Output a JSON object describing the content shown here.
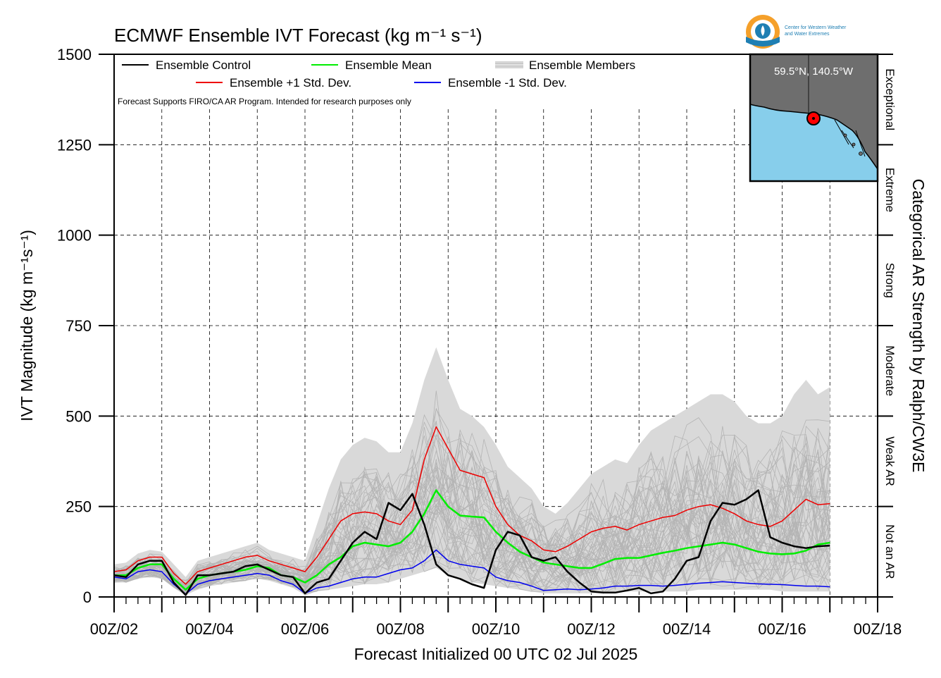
{
  "chart_data": {
    "type": "line",
    "title": "ECMWF Ensemble IVT Forecast (kg m⁻¹ s⁻¹)",
    "xlabel": "Forecast Initialized 00 UTC 02 Jul 2025",
    "ylabel": "IVT Magnitude (kg m⁻¹s⁻¹)",
    "right_label": "Categorical AR Strength by Ralph/CW3E",
    "note": "Forecast Supports FIRO/CA AR Program. Intended for research purposes only",
    "location": "59.5°N, 140.5°W",
    "logo_text": [
      "Center for Western Weather",
      "and Water Extremes"
    ],
    "ylim": [
      0,
      1500
    ],
    "xlim_hours": [
      0,
      384
    ],
    "y_ticks": [
      0,
      250,
      500,
      750,
      1000,
      1250,
      1500
    ],
    "x_ticks": [
      {
        "hour": 0,
        "label": "00Z/02"
      },
      {
        "hour": 48,
        "label": "00Z/04"
      },
      {
        "hour": 96,
        "label": "00Z/06"
      },
      {
        "hour": 144,
        "label": "00Z/08"
      },
      {
        "hour": 192,
        "label": "00Z/10"
      },
      {
        "hour": 240,
        "label": "00Z/12"
      },
      {
        "hour": 288,
        "label": "00Z/14"
      },
      {
        "hour": 336,
        "label": "00Z/16"
      },
      {
        "hour": 384,
        "label": "00Z/18"
      }
    ],
    "categories": [
      {
        "label": "Not an AR",
        "from": 0,
        "to": 250
      },
      {
        "label": "Weak AR",
        "from": 250,
        "to": 500
      },
      {
        "label": "Moderate",
        "from": 500,
        "to": 750
      },
      {
        "label": "Strong",
        "from": 750,
        "to": 1000
      },
      {
        "label": "Extreme",
        "from": 1000,
        "to": 1250
      },
      {
        "label": "Exceptional",
        "from": 1250,
        "to": 1500
      }
    ],
    "legend": [
      {
        "name": "Ensemble Control",
        "color": "#000000"
      },
      {
        "name": "Ensemble Mean",
        "color": "#00ee00"
      },
      {
        "name": "Ensemble Members",
        "color": "#b4b4b4"
      },
      {
        "name": "Ensemble +1 Std. Dev.",
        "color": "#ee0000"
      },
      {
        "name": "Ensemble -1 Std. Dev.",
        "color": "#0000ee"
      }
    ],
    "series": [
      {
        "name": "Ensemble Control",
        "color": "#000000",
        "x": [
          0,
          6,
          12,
          18,
          24,
          30,
          36,
          42,
          48,
          54,
          60,
          66,
          72,
          78,
          84,
          90,
          96,
          102,
          108,
          114,
          120,
          126,
          132,
          138,
          144,
          150,
          156,
          162,
          168,
          174,
          180,
          186,
          192,
          198,
          204,
          210,
          216,
          222,
          228,
          234,
          240,
          246,
          252,
          258,
          264,
          270,
          276,
          282,
          288,
          294,
          300,
          306,
          312,
          318,
          324,
          330,
          336,
          342,
          348,
          354,
          360
        ],
        "y": [
          60,
          55,
          90,
          100,
          100,
          40,
          5,
          60,
          60,
          65,
          70,
          85,
          90,
          75,
          60,
          55,
          10,
          40,
          50,
          100,
          150,
          180,
          160,
          260,
          240,
          285,
          200,
          90,
          60,
          50,
          35,
          25,
          130,
          180,
          170,
          110,
          100,
          110,
          70,
          40,
          15,
          12,
          12,
          18,
          25,
          10,
          15,
          50,
          100,
          110,
          210,
          260,
          255,
          270,
          295,
          165,
          150,
          140,
          135,
          140,
          142
        ]
      },
      {
        "name": "Ensemble Mean",
        "color": "#00ee00",
        "x": [
          0,
          6,
          12,
          18,
          24,
          30,
          36,
          42,
          48,
          54,
          60,
          66,
          72,
          78,
          84,
          90,
          96,
          102,
          108,
          114,
          120,
          126,
          132,
          138,
          144,
          150,
          156,
          162,
          168,
          174,
          180,
          186,
          192,
          198,
          204,
          210,
          216,
          222,
          228,
          234,
          240,
          246,
          252,
          258,
          264,
          270,
          276,
          282,
          288,
          294,
          300,
          306,
          312,
          318,
          324,
          330,
          336,
          342,
          348,
          354,
          360
        ],
        "y": [
          60,
          60,
          80,
          90,
          90,
          50,
          20,
          50,
          60,
          65,
          70,
          75,
          85,
          80,
          60,
          55,
          40,
          60,
          90,
          110,
          140,
          150,
          145,
          140,
          150,
          180,
          230,
          295,
          250,
          225,
          222,
          220,
          180,
          150,
          125,
          110,
          95,
          90,
          85,
          80,
          80,
          92,
          105,
          108,
          108,
          115,
          122,
          128,
          135,
          140,
          145,
          150,
          145,
          135,
          125,
          120,
          118,
          120,
          128,
          145,
          150
        ]
      },
      {
        "name": "Ensemble +1 Std. Dev.",
        "color": "#ee0000",
        "x": [
          0,
          6,
          12,
          18,
          24,
          30,
          36,
          42,
          48,
          54,
          60,
          66,
          72,
          78,
          84,
          90,
          96,
          102,
          108,
          114,
          120,
          126,
          132,
          138,
          144,
          150,
          156,
          162,
          168,
          174,
          180,
          186,
          192,
          198,
          204,
          210,
          216,
          222,
          228,
          234,
          240,
          246,
          252,
          258,
          264,
          270,
          276,
          282,
          288,
          294,
          300,
          306,
          312,
          318,
          324,
          330,
          336,
          342,
          348,
          354,
          360
        ],
        "y": [
          70,
          75,
          100,
          110,
          110,
          65,
          35,
          70,
          80,
          90,
          100,
          110,
          115,
          100,
          90,
          80,
          70,
          110,
          160,
          210,
          230,
          235,
          230,
          210,
          200,
          240,
          380,
          470,
          410,
          350,
          340,
          330,
          250,
          200,
          170,
          155,
          130,
          125,
          140,
          160,
          180,
          190,
          195,
          185,
          200,
          210,
          220,
          225,
          240,
          250,
          255,
          245,
          230,
          210,
          200,
          195,
          210,
          240,
          270,
          255,
          258
        ]
      },
      {
        "name": "Ensemble -1 Std. Dev.",
        "color": "#0000ee",
        "x": [
          0,
          6,
          12,
          18,
          24,
          30,
          36,
          42,
          48,
          54,
          60,
          66,
          72,
          78,
          84,
          90,
          96,
          102,
          108,
          114,
          120,
          126,
          132,
          138,
          144,
          150,
          156,
          162,
          168,
          174,
          180,
          186,
          192,
          198,
          204,
          210,
          216,
          222,
          228,
          234,
          240,
          246,
          252,
          258,
          264,
          270,
          276,
          282,
          288,
          294,
          300,
          306,
          312,
          318,
          324,
          330,
          336,
          342,
          348,
          354,
          360
        ],
        "y": [
          55,
          50,
          70,
          75,
          70,
          35,
          8,
          35,
          45,
          50,
          55,
          60,
          65,
          60,
          45,
          35,
          10,
          25,
          30,
          40,
          50,
          55,
          55,
          65,
          75,
          80,
          100,
          130,
          100,
          90,
          85,
          80,
          55,
          45,
          40,
          30,
          18,
          20,
          22,
          20,
          22,
          25,
          30,
          30,
          32,
          32,
          30,
          32,
          35,
          38,
          40,
          42,
          40,
          38,
          36,
          35,
          34,
          32,
          30,
          30,
          28
        ]
      }
    ],
    "members_band": {
      "x": [
        0,
        6,
        12,
        18,
        24,
        30,
        36,
        42,
        48,
        54,
        60,
        66,
        72,
        78,
        84,
        90,
        96,
        102,
        108,
        114,
        120,
        126,
        132,
        138,
        144,
        150,
        156,
        162,
        168,
        174,
        180,
        186,
        192,
        198,
        204,
        210,
        216,
        222,
        228,
        234,
        240,
        246,
        252,
        258,
        264,
        270,
        276,
        282,
        288,
        294,
        300,
        306,
        312,
        318,
        324,
        330,
        336,
        342,
        348,
        354,
        360
      ],
      "low": [
        40,
        40,
        50,
        55,
        50,
        25,
        5,
        20,
        30,
        35,
        40,
        45,
        50,
        45,
        35,
        25,
        5,
        15,
        20,
        25,
        30,
        35,
        35,
        40,
        50,
        60,
        70,
        80,
        60,
        50,
        40,
        35,
        30,
        25,
        20,
        15,
        10,
        10,
        10,
        10,
        10,
        10,
        15,
        15,
        15,
        15,
        15,
        15,
        15,
        20,
        20,
        20,
        20,
        20,
        20,
        20,
        15,
        15,
        15,
        15,
        15
      ],
      "high": [
        90,
        95,
        120,
        130,
        125,
        90,
        55,
        100,
        110,
        120,
        130,
        140,
        150,
        130,
        120,
        110,
        100,
        200,
        300,
        380,
        420,
        440,
        430,
        400,
        400,
        480,
        600,
        690,
        600,
        520,
        500,
        470,
        420,
        360,
        330,
        300,
        250,
        230,
        260,
        300,
        340,
        360,
        380,
        370,
        420,
        460,
        480,
        500,
        520,
        540,
        560,
        560,
        540,
        500,
        480,
        480,
        500,
        560,
        600,
        560,
        580
      ]
    },
    "members_count": 50
  },
  "colors": {
    "control": "#000000",
    "mean": "#00ee00",
    "plus_std": "#ee0000",
    "minus_std": "#0000ee",
    "members": "#b4b4b4",
    "band_fill": "#d9d9d9",
    "map_ocean": "#87ceeb",
    "map_land": "#6e6e6e",
    "marker": "#ff0000",
    "logo_orange": "#f5a02a",
    "logo_blue": "#1f7fb3"
  }
}
